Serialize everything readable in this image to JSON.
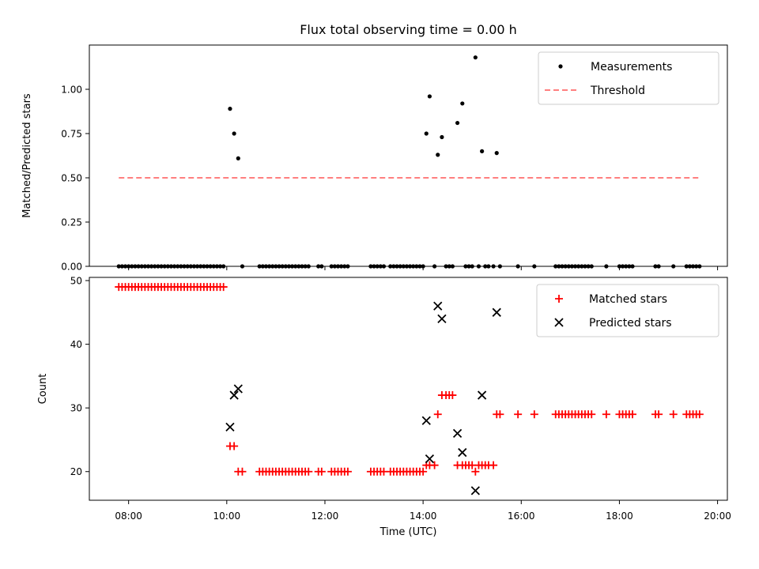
{
  "chart_data": [
    {
      "type": "scatter",
      "title": "Flux total observing time = 0.00 h",
      "xlabel": "",
      "ylabel": "Matched/Predicted stars",
      "xlim": [
        "07:12",
        "20:12"
      ],
      "ylim": [
        0,
        1.25
      ],
      "xticks": [
        "08:00",
        "10:00",
        "12:00",
        "14:00",
        "16:00",
        "18:00",
        "20:00"
      ],
      "yticks": [
        "0.00",
        "0.25",
        "0.50",
        "0.75",
        "1.00"
      ],
      "legend": "top-right",
      "series": [
        {
          "name": "Measurements",
          "kind": "points",
          "color": "#000000",
          "points": [
            [
              "07:48",
              0
            ],
            [
              "07:52",
              0
            ],
            [
              "07:56",
              0
            ],
            [
              "08:00",
              0
            ],
            [
              "08:04",
              0
            ],
            [
              "08:08",
              0
            ],
            [
              "08:12",
              0
            ],
            [
              "08:16",
              0
            ],
            [
              "08:20",
              0
            ],
            [
              "08:24",
              0
            ],
            [
              "08:28",
              0
            ],
            [
              "08:32",
              0
            ],
            [
              "08:36",
              0
            ],
            [
              "08:40",
              0
            ],
            [
              "08:44",
              0
            ],
            [
              "08:48",
              0
            ],
            [
              "08:52",
              0
            ],
            [
              "08:56",
              0
            ],
            [
              "09:00",
              0
            ],
            [
              "09:04",
              0
            ],
            [
              "09:08",
              0
            ],
            [
              "09:12",
              0
            ],
            [
              "09:16",
              0
            ],
            [
              "09:20",
              0
            ],
            [
              "09:24",
              0
            ],
            [
              "09:28",
              0
            ],
            [
              "09:32",
              0
            ],
            [
              "09:36",
              0
            ],
            [
              "09:40",
              0
            ],
            [
              "09:44",
              0
            ],
            [
              "09:48",
              0
            ],
            [
              "09:52",
              0
            ],
            [
              "09:56",
              0
            ],
            [
              "10:04",
              0.89
            ],
            [
              "10:09",
              0.75
            ],
            [
              "10:14",
              0.61
            ],
            [
              "10:19",
              0
            ],
            [
              "10:40",
              0
            ],
            [
              "10:44",
              0
            ],
            [
              "10:48",
              0
            ],
            [
              "10:52",
              0
            ],
            [
              "10:56",
              0
            ],
            [
              "11:00",
              0
            ],
            [
              "11:04",
              0
            ],
            [
              "11:08",
              0
            ],
            [
              "11:12",
              0
            ],
            [
              "11:16",
              0
            ],
            [
              "11:20",
              0
            ],
            [
              "11:24",
              0
            ],
            [
              "11:28",
              0
            ],
            [
              "11:32",
              0
            ],
            [
              "11:36",
              0
            ],
            [
              "11:40",
              0
            ],
            [
              "11:52",
              0
            ],
            [
              "11:56",
              0
            ],
            [
              "12:08",
              0
            ],
            [
              "12:12",
              0
            ],
            [
              "12:16",
              0
            ],
            [
              "12:20",
              0
            ],
            [
              "12:24",
              0
            ],
            [
              "12:28",
              0
            ],
            [
              "12:56",
              0
            ],
            [
              "13:00",
              0
            ],
            [
              "13:04",
              0
            ],
            [
              "13:08",
              0
            ],
            [
              "13:12",
              0
            ],
            [
              "13:20",
              0
            ],
            [
              "13:24",
              0
            ],
            [
              "13:28",
              0
            ],
            [
              "13:32",
              0
            ],
            [
              "13:36",
              0
            ],
            [
              "13:40",
              0
            ],
            [
              "13:44",
              0
            ],
            [
              "13:48",
              0
            ],
            [
              "13:52",
              0
            ],
            [
              "13:56",
              0
            ],
            [
              "14:00",
              0
            ],
            [
              "14:04",
              0.75
            ],
            [
              "14:08",
              0.96
            ],
            [
              "14:14",
              0
            ],
            [
              "14:18",
              0.63
            ],
            [
              "14:23",
              0.73
            ],
            [
              "14:28",
              0
            ],
            [
              "14:32",
              0
            ],
            [
              "14:36",
              0
            ],
            [
              "14:42",
              0.81
            ],
            [
              "14:48",
              0.92
            ],
            [
              "14:52",
              0
            ],
            [
              "14:56",
              0
            ],
            [
              "15:00",
              0
            ],
            [
              "15:04",
              1.18
            ],
            [
              "15:08",
              0
            ],
            [
              "15:12",
              0.65
            ],
            [
              "15:16",
              0
            ],
            [
              "15:20",
              0
            ],
            [
              "15:26",
              0
            ],
            [
              "15:30",
              0.64
            ],
            [
              "15:34",
              0
            ],
            [
              "15:56",
              0
            ],
            [
              "16:16",
              0
            ],
            [
              "16:42",
              0
            ],
            [
              "16:46",
              0
            ],
            [
              "16:50",
              0
            ],
            [
              "16:54",
              0
            ],
            [
              "16:58",
              0
            ],
            [
              "17:02",
              0
            ],
            [
              "17:06",
              0
            ],
            [
              "17:10",
              0
            ],
            [
              "17:14",
              0
            ],
            [
              "17:18",
              0
            ],
            [
              "17:22",
              0
            ],
            [
              "17:26",
              0
            ],
            [
              "17:44",
              0
            ],
            [
              "18:00",
              0
            ],
            [
              "18:04",
              0
            ],
            [
              "18:08",
              0
            ],
            [
              "18:12",
              0
            ],
            [
              "18:16",
              0
            ],
            [
              "18:44",
              0
            ],
            [
              "18:48",
              0
            ],
            [
              "19:06",
              0
            ],
            [
              "19:22",
              0
            ],
            [
              "19:26",
              0
            ],
            [
              "19:30",
              0
            ],
            [
              "19:34",
              0
            ],
            [
              "19:38",
              0
            ]
          ]
        },
        {
          "name": "Threshold",
          "kind": "dashed-line",
          "color": "#ff7f7f",
          "points": [
            [
              "07:48",
              0.5
            ],
            [
              "19:38",
              0.5
            ]
          ]
        }
      ]
    },
    {
      "type": "scatter",
      "title": "",
      "xlabel": "Time (UTC)",
      "ylabel": "Count",
      "xlim": [
        "07:12",
        "20:12"
      ],
      "ylim": [
        15.5,
        50.5
      ],
      "xticks": [
        "08:00",
        "10:00",
        "12:00",
        "14:00",
        "16:00",
        "18:00",
        "20:00"
      ],
      "yticks": [
        "20",
        "30",
        "40",
        "50"
      ],
      "legend": "top-right",
      "series": [
        {
          "name": "Matched stars",
          "kind": "plus",
          "color": "#ff0000",
          "points": [
            [
              "07:48",
              49
            ],
            [
              "07:52",
              49
            ],
            [
              "07:56",
              49
            ],
            [
              "08:00",
              49
            ],
            [
              "08:04",
              49
            ],
            [
              "08:08",
              49
            ],
            [
              "08:12",
              49
            ],
            [
              "08:16",
              49
            ],
            [
              "08:20",
              49
            ],
            [
              "08:24",
              49
            ],
            [
              "08:28",
              49
            ],
            [
              "08:32",
              49
            ],
            [
              "08:36",
              49
            ],
            [
              "08:40",
              49
            ],
            [
              "08:44",
              49
            ],
            [
              "08:48",
              49
            ],
            [
              "08:52",
              49
            ],
            [
              "08:56",
              49
            ],
            [
              "09:00",
              49
            ],
            [
              "09:04",
              49
            ],
            [
              "09:08",
              49
            ],
            [
              "09:12",
              49
            ],
            [
              "09:16",
              49
            ],
            [
              "09:20",
              49
            ],
            [
              "09:24",
              49
            ],
            [
              "09:28",
              49
            ],
            [
              "09:32",
              49
            ],
            [
              "09:36",
              49
            ],
            [
              "09:40",
              49
            ],
            [
              "09:44",
              49
            ],
            [
              "09:48",
              49
            ],
            [
              "09:52",
              49
            ],
            [
              "09:56",
              49
            ],
            [
              "10:04",
              24
            ],
            [
              "10:09",
              24
            ],
            [
              "10:14",
              20
            ],
            [
              "10:19",
              20
            ],
            [
              "10:40",
              20
            ],
            [
              "10:44",
              20
            ],
            [
              "10:48",
              20
            ],
            [
              "10:52",
              20
            ],
            [
              "10:56",
              20
            ],
            [
              "11:00",
              20
            ],
            [
              "11:04",
              20
            ],
            [
              "11:08",
              20
            ],
            [
              "11:12",
              20
            ],
            [
              "11:16",
              20
            ],
            [
              "11:20",
              20
            ],
            [
              "11:24",
              20
            ],
            [
              "11:28",
              20
            ],
            [
              "11:32",
              20
            ],
            [
              "11:36",
              20
            ],
            [
              "11:40",
              20
            ],
            [
              "11:52",
              20
            ],
            [
              "11:56",
              20
            ],
            [
              "12:08",
              20
            ],
            [
              "12:12",
              20
            ],
            [
              "12:16",
              20
            ],
            [
              "12:20",
              20
            ],
            [
              "12:24",
              20
            ],
            [
              "12:28",
              20
            ],
            [
              "12:56",
              20
            ],
            [
              "13:00",
              20
            ],
            [
              "13:04",
              20
            ],
            [
              "13:08",
              20
            ],
            [
              "13:12",
              20
            ],
            [
              "13:20",
              20
            ],
            [
              "13:24",
              20
            ],
            [
              "13:28",
              20
            ],
            [
              "13:32",
              20
            ],
            [
              "13:36",
              20
            ],
            [
              "13:40",
              20
            ],
            [
              "13:44",
              20
            ],
            [
              "13:48",
              20
            ],
            [
              "13:52",
              20
            ],
            [
              "13:56",
              20
            ],
            [
              "14:00",
              20
            ],
            [
              "14:04",
              21
            ],
            [
              "14:08",
              21
            ],
            [
              "14:14",
              21
            ],
            [
              "14:18",
              29
            ],
            [
              "14:23",
              32
            ],
            [
              "14:28",
              32
            ],
            [
              "14:32",
              32
            ],
            [
              "14:36",
              32
            ],
            [
              "14:42",
              21
            ],
            [
              "14:48",
              21
            ],
            [
              "14:52",
              21
            ],
            [
              "14:56",
              21
            ],
            [
              "15:00",
              21
            ],
            [
              "15:04",
              20
            ],
            [
              "15:08",
              21
            ],
            [
              "15:12",
              21
            ],
            [
              "15:16",
              21
            ],
            [
              "15:20",
              21
            ],
            [
              "15:26",
              21
            ],
            [
              "15:30",
              29
            ],
            [
              "15:34",
              29
            ],
            [
              "15:56",
              29
            ],
            [
              "16:16",
              29
            ],
            [
              "16:42",
              29
            ],
            [
              "16:46",
              29
            ],
            [
              "16:50",
              29
            ],
            [
              "16:54",
              29
            ],
            [
              "16:58",
              29
            ],
            [
              "17:02",
              29
            ],
            [
              "17:06",
              29
            ],
            [
              "17:10",
              29
            ],
            [
              "17:14",
              29
            ],
            [
              "17:18",
              29
            ],
            [
              "17:22",
              29
            ],
            [
              "17:26",
              29
            ],
            [
              "17:44",
              29
            ],
            [
              "18:00",
              29
            ],
            [
              "18:04",
              29
            ],
            [
              "18:08",
              29
            ],
            [
              "18:12",
              29
            ],
            [
              "18:16",
              29
            ],
            [
              "18:44",
              29
            ],
            [
              "18:48",
              29
            ],
            [
              "19:06",
              29
            ],
            [
              "19:22",
              29
            ],
            [
              "19:26",
              29
            ],
            [
              "19:30",
              29
            ],
            [
              "19:34",
              29
            ],
            [
              "19:38",
              29
            ]
          ]
        },
        {
          "name": "Predicted stars",
          "kind": "cross",
          "color": "#000000",
          "points": [
            [
              "10:04",
              27
            ],
            [
              "10:09",
              32
            ],
            [
              "10:14",
              33
            ],
            [
              "14:04",
              28
            ],
            [
              "14:08",
              22
            ],
            [
              "14:18",
              46
            ],
            [
              "14:23",
              44
            ],
            [
              "14:42",
              26
            ],
            [
              "14:48",
              23
            ],
            [
              "15:04",
              17
            ],
            [
              "15:12",
              32
            ],
            [
              "15:30",
              45
            ]
          ]
        }
      ]
    }
  ]
}
